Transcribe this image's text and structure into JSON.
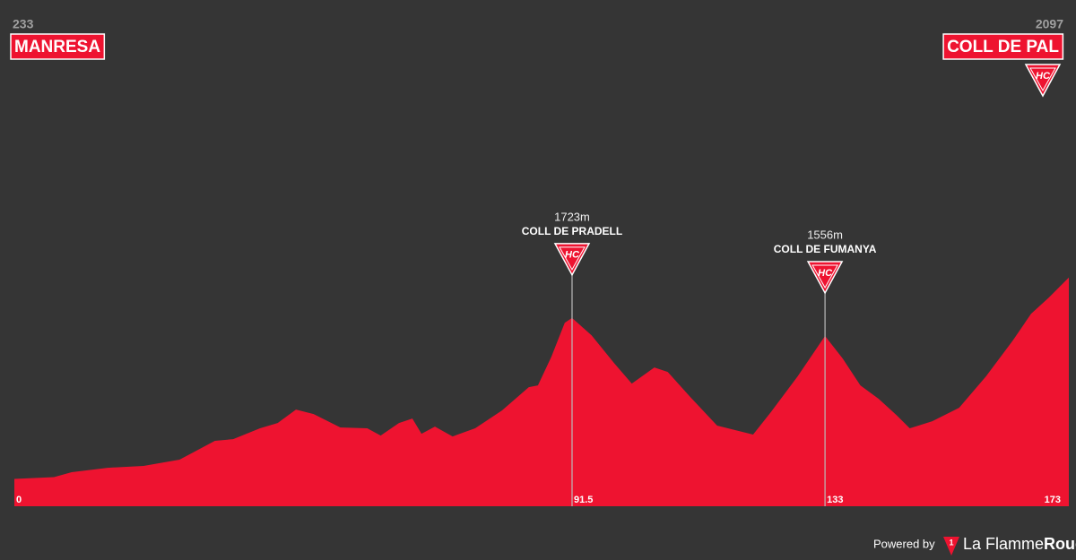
{
  "chart_data": {
    "type": "area",
    "x": [
      0,
      6.5,
      9.4,
      15.3,
      21.2,
      27.1,
      32.9,
      35.9,
      40.3,
      43.2,
      46.2,
      49.1,
      53.5,
      57.9,
      60.1,
      63.1,
      65.3,
      66.8,
      69,
      71.9,
      75.6,
      80,
      84.4,
      85.9,
      88.1,
      90.3,
      91.5,
      94.7,
      98.4,
      101.3,
      105,
      107.2,
      110.9,
      115.3,
      121.2,
      124.1,
      128.5,
      133,
      135.9,
      138.8,
      141.8,
      144.7,
      146.9,
      150.6,
      155,
      159.4,
      163.8,
      166.8,
      169.7,
      173
    ],
    "values": [
      233,
      250,
      295,
      336,
      353,
      411,
      585,
      601,
      701,
      750,
      875,
      833,
      709,
      701,
      634,
      750,
      792,
      651,
      717,
      626,
      701,
      866,
      1082,
      1098,
      1363,
      1678,
      1723,
      1562,
      1305,
      1115,
      1264,
      1223,
      991,
      726,
      643,
      850,
      1181,
      1556,
      1347,
      1098,
      974,
      825,
      701,
      767,
      891,
      1181,
      1513,
      1761,
      1910,
      2097
    ],
    "color": "#ee1330",
    "xlim": [
      0,
      173
    ],
    "ylim": [
      -20,
      2700
    ],
    "xticks": [
      0,
      91.5,
      133,
      173
    ],
    "start": {
      "name": "MANRESA",
      "elevation": 233
    },
    "finish": {
      "name": "COLL DE PAL",
      "elevation": 2097,
      "category": "HC"
    },
    "climbs": [
      {
        "name": "COLL DE PRADELL",
        "km": 91.5,
        "elevation": 1723,
        "elevation_label": "1723m",
        "category": "HC"
      },
      {
        "name": "COLL DE FUMANYA",
        "km": 133,
        "elevation": 1556,
        "elevation_label": "1556m",
        "category": "HC"
      }
    ]
  },
  "footer": {
    "powered_by": "Powered by",
    "logo": "1",
    "brand": "La Flamme",
    "brand_bold": "Rouge"
  }
}
